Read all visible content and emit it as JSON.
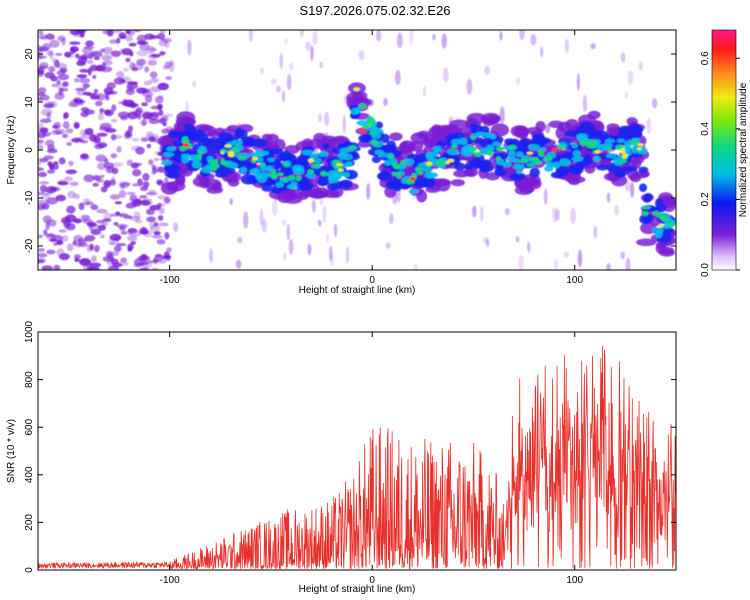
{
  "title": "S197.2026.075.02.32.E26",
  "colors": {
    "snr_line": "#e8302a",
    "speckle": "#7a1fd6",
    "frame": "#000000"
  },
  "chart_data": [
    {
      "type": "heatmap",
      "name": "spectrogram",
      "xlabel": "Height of straight line (km)",
      "ylabel": "Frequency (Hz)",
      "xlim": [
        -165,
        150
      ],
      "ylim": [
        -25,
        25
      ],
      "xticks": [
        -100,
        0,
        100
      ],
      "yticks": [
        -20,
        -10,
        0,
        10,
        20
      ],
      "xtick_labels": [
        "-100",
        "0",
        "100"
      ],
      "ytick_labels": [
        "-20",
        "-10",
        "0",
        "10",
        "20"
      ],
      "colorbar": {
        "label": "Normalized spectral amplitude",
        "range": [
          0.0,
          0.68
        ],
        "ticks": [
          0.0,
          0.2,
          0.4,
          0.6
        ],
        "tick_labels": [
          "0.0",
          "0.2",
          "0.4",
          "0.6"
        ]
      },
      "ridge": {
        "description": "main echo band centre frequency vs height",
        "x": [
          -100,
          -90,
          -80,
          -70,
          -60,
          -50,
          -40,
          -30,
          -20,
          -10,
          -8,
          -5,
          0,
          5,
          10,
          20,
          25,
          35,
          50,
          60,
          75,
          90,
          100,
          110,
          120,
          133,
          135,
          143
        ],
        "y": [
          -2,
          1,
          -3,
          0,
          -2,
          -4,
          -5,
          -3,
          -4,
          -2,
          12,
          8,
          4,
          -1,
          -3,
          -6,
          -3,
          -2,
          1,
          0,
          -2,
          -1,
          0,
          1,
          -1,
          1,
          -13,
          -15
        ]
      }
    },
    {
      "type": "line",
      "name": "snr",
      "xlabel": "Height of straight line (km)",
      "ylabel": "SNR (10 * v/v)",
      "xlim": [
        -165,
        150
      ],
      "ylim": [
        0,
        1000
      ],
      "xticks": [
        -100,
        0,
        100
      ],
      "yticks": [
        0,
        200,
        400,
        600,
        800,
        1000
      ],
      "xtick_labels": [
        "-100",
        "0",
        "100"
      ],
      "ytick_labels": [
        "0",
        "200",
        "400",
        "600",
        "800",
        "1000"
      ],
      "envelope": {
        "description": "approximate upper envelope of the noisy SNR trace",
        "x": [
          -165,
          -100,
          -90,
          -80,
          -60,
          -40,
          -20,
          -10,
          0,
          10,
          20,
          30,
          40,
          50,
          60,
          65,
          70,
          80,
          90,
          100,
          110,
          115,
          120,
          130,
          140,
          150
        ],
        "y": [
          30,
          35,
          70,
          110,
          190,
          260,
          300,
          400,
          620,
          600,
          560,
          550,
          560,
          540,
          450,
          280,
          800,
          860,
          880,
          930,
          920,
          960,
          940,
          800,
          700,
          600
        ]
      }
    }
  ]
}
